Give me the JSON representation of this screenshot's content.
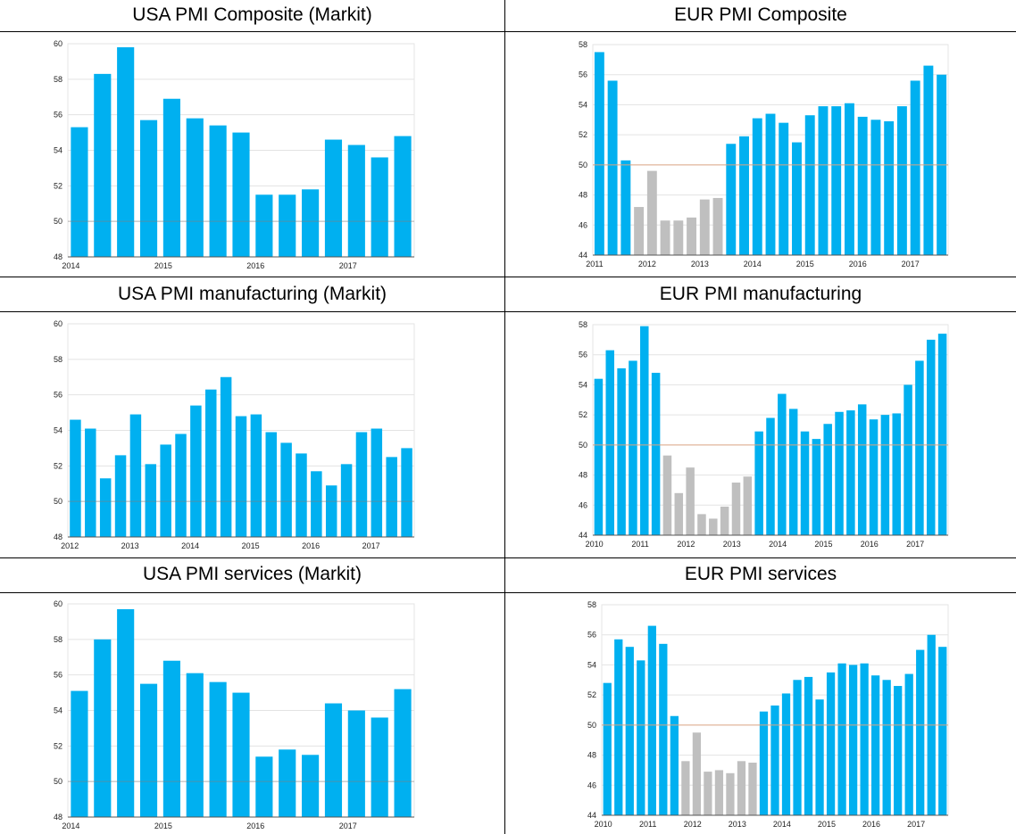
{
  "colors": {
    "positive": "#00b0f0",
    "contraction": "#bfbfbf",
    "fifty_line": "#d9a382",
    "grid": "#e3e3e3",
    "axis": "#555555"
  },
  "chart_data": [
    {
      "id": "usa_composite",
      "type": "bar",
      "title": "USA PMI Composite (Markit)",
      "ylim": [
        48,
        60
      ],
      "yticks": [
        48,
        50,
        52,
        54,
        56,
        58,
        60
      ],
      "grid": true,
      "xticks": [
        {
          "label": "2014",
          "index": 0
        },
        {
          "label": "2015",
          "index": 4
        },
        {
          "label": "2016",
          "index": 8
        },
        {
          "label": "2017",
          "index": 12
        }
      ],
      "values": [
        55.3,
        58.3,
        59.8,
        55.7,
        56.9,
        55.8,
        55.4,
        55.0,
        51.5,
        51.5,
        51.8,
        54.6,
        54.3,
        53.6,
        54.8
      ]
    },
    {
      "id": "eur_composite",
      "type": "bar",
      "title": "EUR PMI Composite",
      "ylim": [
        44,
        58
      ],
      "yticks": [
        44,
        46,
        48,
        50,
        52,
        54,
        56,
        58
      ],
      "grid": true,
      "xticks": [
        {
          "label": "2011",
          "index": 0
        },
        {
          "label": "2012",
          "index": 4
        },
        {
          "label": "2013",
          "index": 8
        },
        {
          "label": "2014",
          "index": 12
        },
        {
          "label": "2015",
          "index": 16
        },
        {
          "label": "2016",
          "index": 20
        },
        {
          "label": "2017",
          "index": 24
        }
      ],
      "values": [
        57.5,
        55.6,
        50.3,
        47.2,
        49.6,
        46.3,
        46.3,
        46.5,
        47.7,
        47.8,
        51.4,
        51.9,
        53.1,
        53.4,
        52.8,
        51.5,
        53.3,
        53.9,
        53.9,
        54.1,
        53.2,
        53.0,
        52.9,
        53.9,
        55.6,
        56.6,
        56.0
      ],
      "gray_indices": [
        3,
        4,
        5,
        6,
        7,
        8,
        9
      ]
    },
    {
      "id": "usa_manufacturing",
      "type": "bar",
      "title": "USA PMI manufacturing (Markit)",
      "ylim": [
        48,
        60
      ],
      "yticks": [
        48,
        50,
        52,
        54,
        56,
        58,
        60
      ],
      "grid": true,
      "xticks": [
        {
          "label": "2012",
          "index": 0
        },
        {
          "label": "2013",
          "index": 4
        },
        {
          "label": "2014",
          "index": 8
        },
        {
          "label": "2015",
          "index": 12
        },
        {
          "label": "2016",
          "index": 16
        },
        {
          "label": "2017",
          "index": 20
        }
      ],
      "values": [
        54.6,
        54.1,
        51.3,
        52.6,
        54.9,
        52.1,
        53.2,
        53.8,
        55.4,
        56.3,
        57.0,
        54.8,
        54.9,
        53.9,
        53.3,
        52.7,
        51.7,
        50.9,
        52.1,
        53.9,
        54.1,
        52.5,
        53.0
      ]
    },
    {
      "id": "eur_manufacturing",
      "type": "bar",
      "title": "EUR PMI manufacturing",
      "ylim": [
        44,
        58
      ],
      "yticks": [
        44,
        46,
        48,
        50,
        52,
        54,
        56,
        58
      ],
      "grid": true,
      "xticks": [
        {
          "label": "2010",
          "index": 0
        },
        {
          "label": "2011",
          "index": 4
        },
        {
          "label": "2012",
          "index": 8
        },
        {
          "label": "2013",
          "index": 12
        },
        {
          "label": "2014",
          "index": 16
        },
        {
          "label": "2015",
          "index": 20
        },
        {
          "label": "2016",
          "index": 24
        },
        {
          "label": "2017",
          "index": 28
        }
      ],
      "values": [
        54.4,
        56.3,
        55.1,
        55.6,
        57.9,
        54.8,
        49.3,
        46.8,
        48.5,
        45.4,
        45.1,
        45.9,
        47.5,
        47.9,
        50.9,
        51.8,
        53.4,
        52.4,
        50.9,
        50.4,
        51.4,
        52.2,
        52.3,
        52.7,
        51.7,
        52.0,
        52.1,
        54.0,
        55.6,
        57.0,
        57.4
      ],
      "gray_indices": [
        6,
        7,
        8,
        9,
        10,
        11,
        12,
        13
      ]
    },
    {
      "id": "usa_services",
      "type": "bar",
      "title": "USA PMI services (Markit)",
      "ylim": [
        48,
        60
      ],
      "yticks": [
        48,
        50,
        52,
        54,
        56,
        58,
        60
      ],
      "grid": true,
      "xticks": [
        {
          "label": "2014",
          "index": 0
        },
        {
          "label": "2015",
          "index": 4
        },
        {
          "label": "2016",
          "index": 8
        },
        {
          "label": "2017",
          "index": 12
        }
      ],
      "values": [
        55.1,
        58.0,
        59.7,
        55.5,
        56.8,
        56.1,
        55.6,
        55.0,
        51.4,
        51.8,
        51.5,
        54.4,
        54.0,
        53.6,
        55.2
      ]
    },
    {
      "id": "eur_services",
      "type": "bar",
      "title": "EUR PMI services",
      "ylim": [
        44,
        58
      ],
      "yticks": [
        44,
        46,
        48,
        50,
        52,
        54,
        56,
        58
      ],
      "grid": true,
      "xticks": [
        {
          "label": "2010",
          "index": 0
        },
        {
          "label": "2011",
          "index": 4
        },
        {
          "label": "2012",
          "index": 8
        },
        {
          "label": "2013",
          "index": 12
        },
        {
          "label": "2014",
          "index": 16
        },
        {
          "label": "2015",
          "index": 20
        },
        {
          "label": "2016",
          "index": 24
        },
        {
          "label": "2017",
          "index": 28
        }
      ],
      "values": [
        52.8,
        55.7,
        55.2,
        54.3,
        56.6,
        55.4,
        50.6,
        47.6,
        49.5,
        46.9,
        47.0,
        46.8,
        47.6,
        47.5,
        50.9,
        51.3,
        52.1,
        53.0,
        53.2,
        51.7,
        53.5,
        54.1,
        54.0,
        54.1,
        53.3,
        53.0,
        52.6,
        53.4,
        55.0,
        56.0,
        55.2
      ],
      "gray_indices": [
        7,
        8,
        9,
        10,
        11,
        12,
        13
      ]
    }
  ]
}
